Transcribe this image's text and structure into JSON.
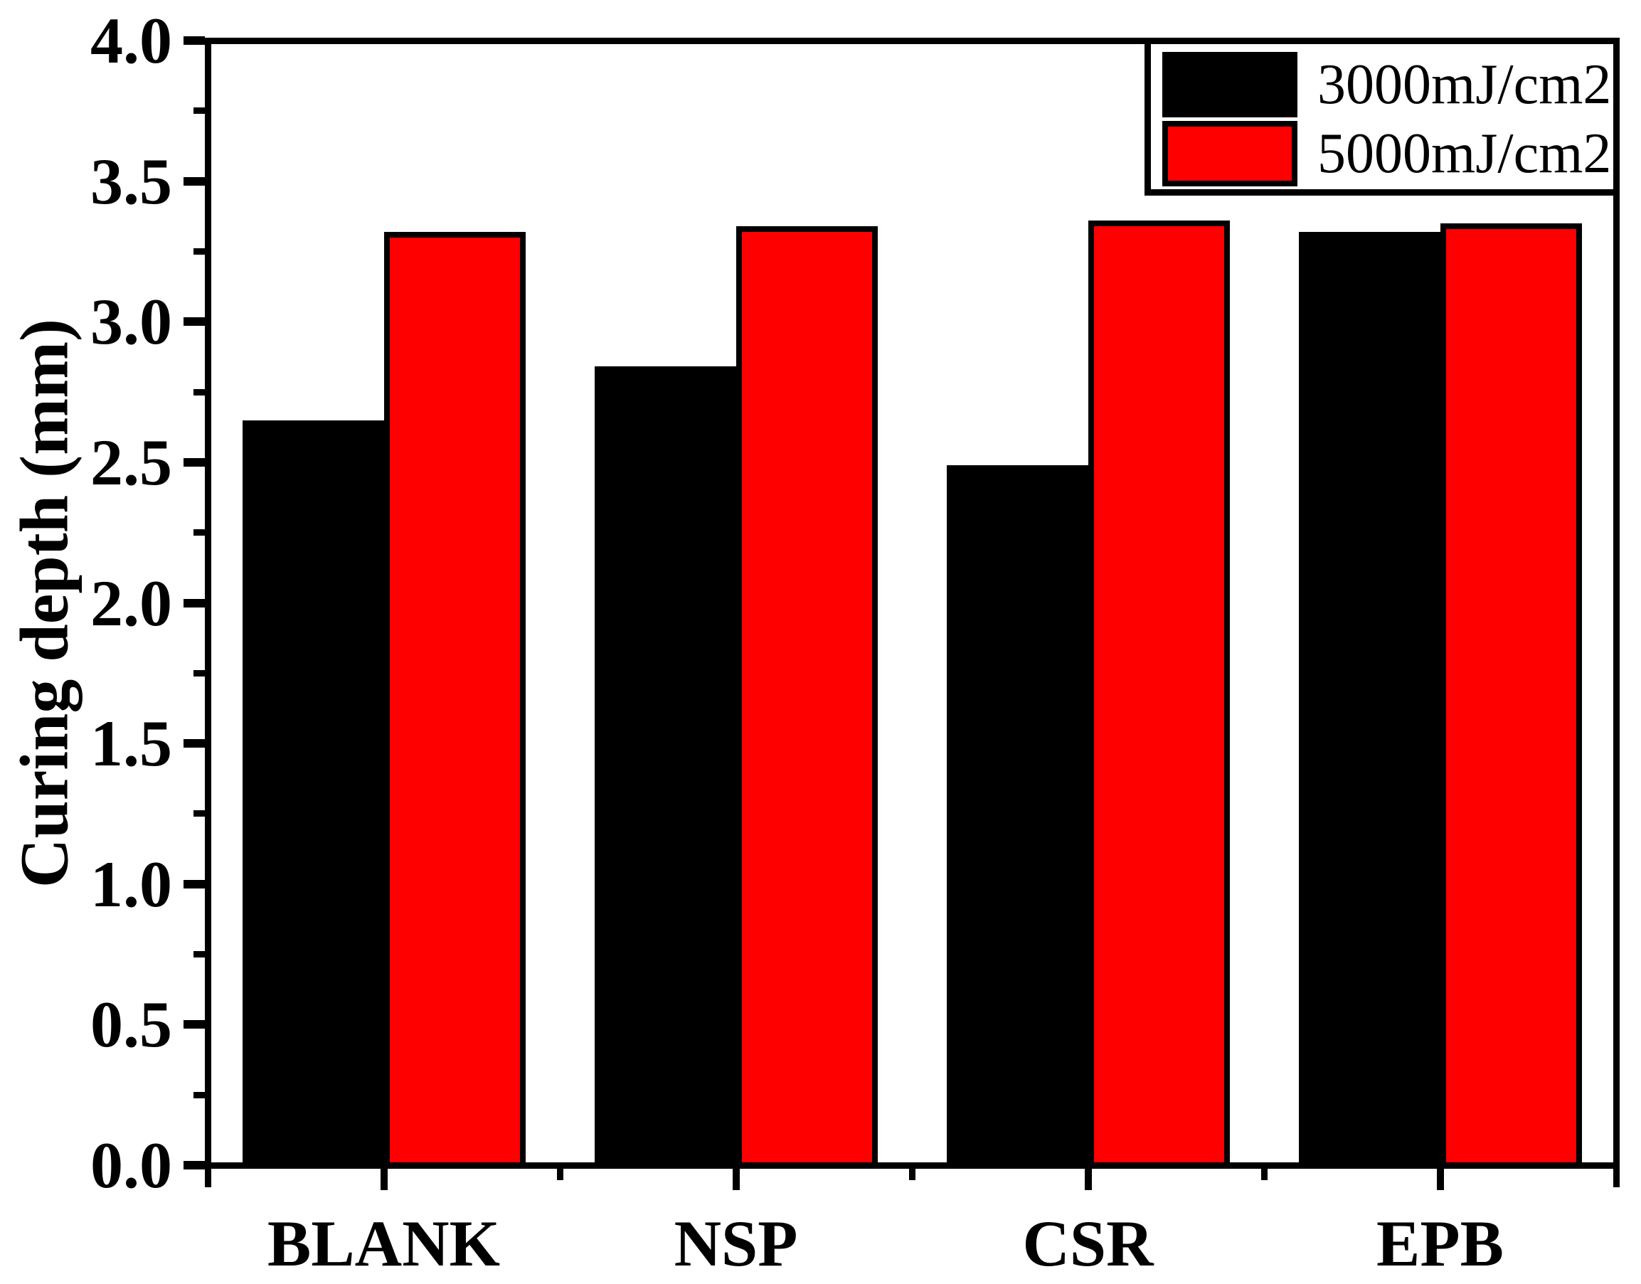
{
  "chart_data": {
    "type": "bar",
    "title": "",
    "categories": [
      "BLANK",
      "NSP",
      "CSR",
      "EPB"
    ],
    "series": [
      {
        "name": "3000mJ/cm2",
        "color": "#000000",
        "values": [
          2.65,
          2.84,
          2.49,
          3.32
        ]
      },
      {
        "name": "5000mJ/cm2",
        "color": "#ff0000",
        "values": [
          3.32,
          3.34,
          3.36,
          3.35
        ]
      }
    ],
    "xlabel": "",
    "ylabel": "Curing depth (mm)",
    "ylim": [
      0.0,
      4.0
    ],
    "y_major_step": 0.5,
    "y_minor_step": 0.25,
    "y_tick_labels": [
      "0.0",
      "0.5",
      "1.0",
      "1.5",
      "2.0",
      "2.5",
      "3.0",
      "3.5",
      "4.0"
    ],
    "grid": false,
    "legend_position": "top-right",
    "colors": {
      "background": "#ffffff",
      "axis": "#000000",
      "bar_outline": "#000000"
    }
  }
}
